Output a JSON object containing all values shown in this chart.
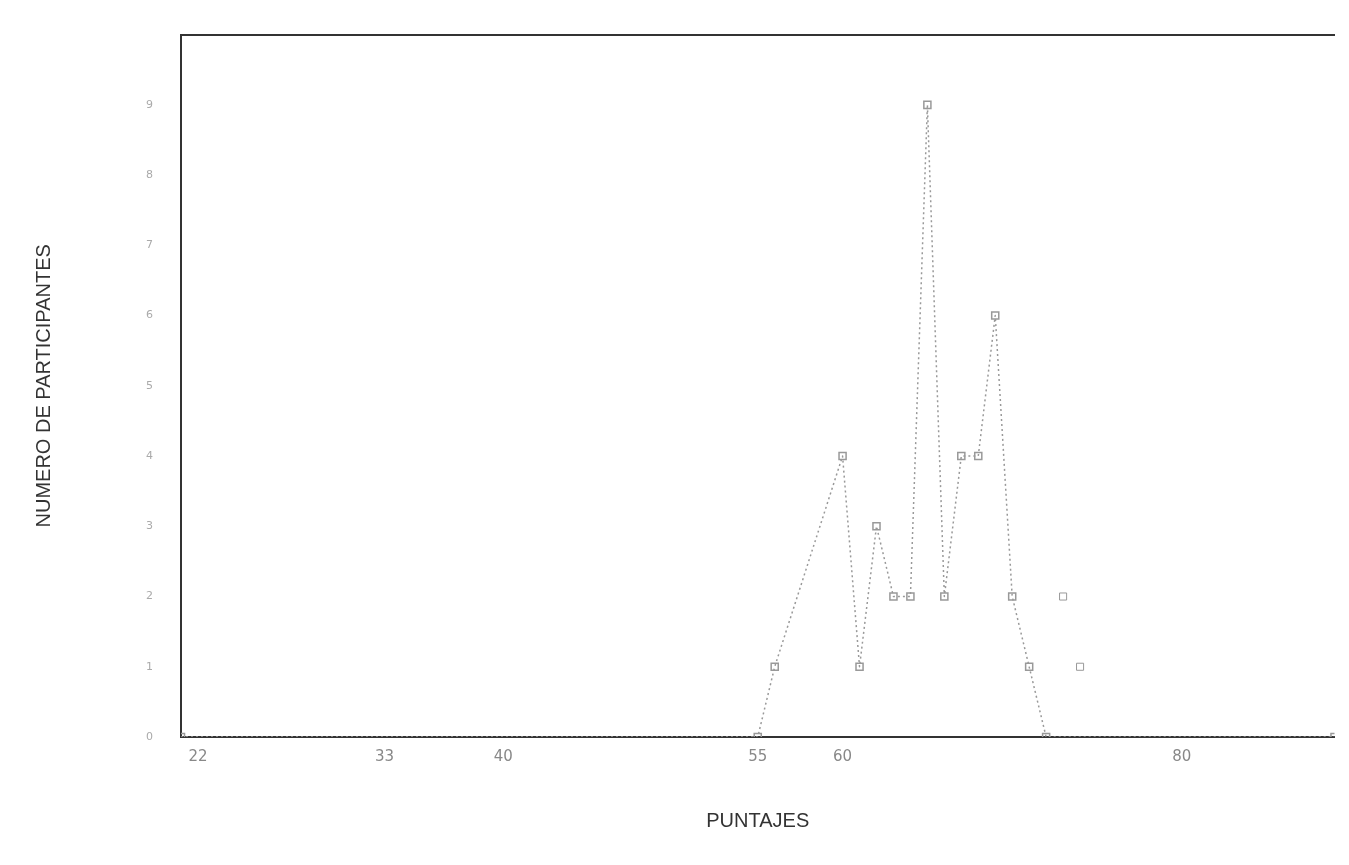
{
  "chart_data": {
    "type": "line",
    "xlabel": "PUNTAJES",
    "ylabel": "NUMERO DE PARTICIPANTES",
    "xlim": [
      21,
      89
    ],
    "xticks": [
      22,
      33,
      40,
      55,
      60,
      80
    ],
    "ylim": [
      0,
      10
    ],
    "yticks": [
      0,
      1,
      2,
      3,
      4,
      5,
      6,
      7,
      8,
      9
    ],
    "grid": false,
    "marker": "square",
    "line_style": "dotted",
    "series": [
      {
        "color": "#999999",
        "x": [
          21,
          55,
          56,
          60,
          61,
          62,
          63,
          64,
          65,
          66,
          67,
          68,
          69,
          70,
          71,
          72,
          89
        ],
        "values": [
          0,
          0,
          1,
          4,
          1,
          3,
          2,
          2,
          9,
          2,
          4,
          4,
          6,
          2,
          1,
          0,
          0
        ]
      },
      {
        "type": "scatter",
        "color": "#999999",
        "x": [
          73,
          74
        ],
        "values": [
          2,
          1
        ]
      }
    ]
  }
}
